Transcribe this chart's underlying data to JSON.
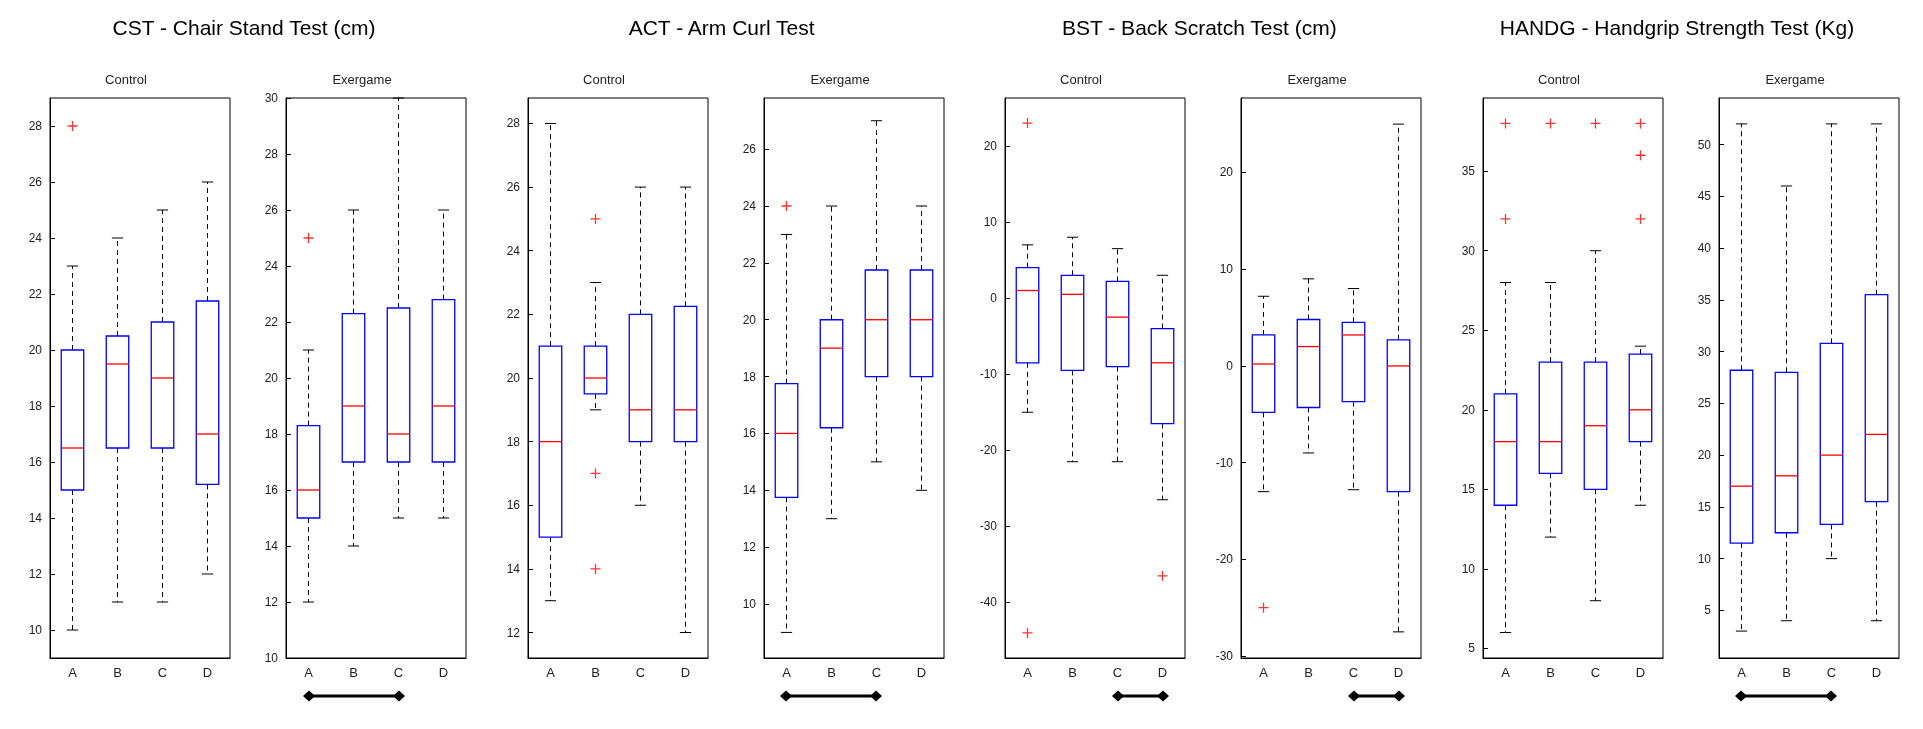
{
  "chart_data": [
    {
      "type": "box",
      "title": "CST - Chair Stand Test (cm)",
      "subtitle": "Control",
      "categories": [
        "A",
        "B",
        "C",
        "D"
      ],
      "ylim": [
        9,
        29
      ],
      "yticks": [
        10,
        12,
        14,
        16,
        18,
        20,
        22,
        24,
        26,
        28
      ],
      "grid": false,
      "marker": "cross",
      "line_style": "dashed",
      "series": [
        {
          "color": "#0000ff",
          "boxes": [
            {
              "low": 10,
              "q1": 15,
              "median": 16.5,
              "q3": 20,
              "high": 23,
              "outliers": [
                28
              ]
            },
            {
              "low": 11,
              "q1": 16.5,
              "median": 19.5,
              "q3": 20.5,
              "high": 24
            },
            {
              "low": 11,
              "q1": 16.5,
              "median": 19,
              "q3": 21,
              "high": 25
            },
            {
              "low": 12,
              "q1": 15.2,
              "median": 17,
              "q3": 21.75,
              "high": 26
            }
          ]
        }
      ]
    },
    {
      "type": "box",
      "subtitle": "Exergame",
      "categories": [
        "A",
        "B",
        "C",
        "D"
      ],
      "ylim": [
        10,
        30
      ],
      "yticks": [
        10,
        12,
        14,
        16,
        18,
        20,
        22,
        24,
        26,
        28,
        30
      ],
      "grid": false,
      "marker": "cross",
      "line_style": "dashed",
      "series": [
        {
          "color": "#0000ff",
          "boxes": [
            {
              "low": 12,
              "q1": 15,
              "median": 16,
              "q3": 18.3,
              "high": 21,
              "outliers": [
                25
              ]
            },
            {
              "low": 14,
              "q1": 17,
              "median": 19,
              "q3": 22.3,
              "high": 26
            },
            {
              "low": 15,
              "q1": 17,
              "median": 18,
              "q3": 22.5,
              "high": 30
            },
            {
              "low": 15,
              "q1": 17,
              "median": 19,
              "q3": 22.8,
              "high": 26
            }
          ]
        }
      ]
    },
    {
      "type": "box",
      "title": "ACT - Arm Curl Test",
      "subtitle": "Control",
      "categories": [
        "A",
        "B",
        "C",
        "D"
      ],
      "ylim": [
        11.2,
        28.8
      ],
      "yticks": [
        12,
        14,
        16,
        18,
        20,
        22,
        24,
        26,
        28
      ],
      "grid": false,
      "marker": "cross",
      "line_style": "dashed",
      "series": [
        {
          "color": "#0000ff",
          "boxes": [
            {
              "low": 13,
              "q1": 15,
              "median": 18,
              "q3": 21,
              "high": 28
            },
            {
              "low": 19,
              "q1": 19.5,
              "median": 20,
              "q3": 21,
              "high": 23,
              "outliers": [
                25,
                17,
                14
              ]
            },
            {
              "low": 16,
              "q1": 18,
              "median": 19,
              "q3": 22,
              "high": 26
            },
            {
              "low": 12,
              "q1": 18,
              "median": 19,
              "q3": 22.25,
              "high": 26
            }
          ]
        }
      ]
    },
    {
      "type": "box",
      "subtitle": "Exergame",
      "categories": [
        "A",
        "B",
        "C",
        "D"
      ],
      "ylim": [
        8.1,
        27.8
      ],
      "yticks": [
        10,
        12,
        14,
        16,
        18,
        20,
        22,
        24,
        26
      ],
      "grid": false,
      "marker": "cross",
      "line_style": "dashed",
      "series": [
        {
          "color": "#0000ff",
          "boxes": [
            {
              "low": 9,
              "q1": 13.75,
              "median": 16,
              "q3": 17.75,
              "high": 23,
              "outliers": [
                24
              ]
            },
            {
              "low": 13,
              "q1": 16.2,
              "median": 19,
              "q3": 20,
              "high": 24
            },
            {
              "low": 15,
              "q1": 18,
              "median": 20,
              "q3": 21.75,
              "high": 27
            },
            {
              "low": 14,
              "q1": 18,
              "median": 20,
              "q3": 21.75,
              "high": 24
            }
          ]
        }
      ]
    },
    {
      "type": "box",
      "title": "BST - Back Scratch Test (cm)",
      "subtitle": "Control",
      "categories": [
        "A",
        "B",
        "C",
        "D"
      ],
      "ylim": [
        -47.3,
        26.3
      ],
      "yticks": [
        -40,
        -30,
        -20,
        -10,
        0,
        10,
        20
      ],
      "grid": false,
      "marker": "cross",
      "line_style": "dashed",
      "series": [
        {
          "color": "#0000ff",
          "boxes": [
            {
              "low": -15,
              "q1": -8.5,
              "median": 1,
              "q3": 4,
              "high": 7,
              "outliers": [
                23,
                -44
              ]
            },
            {
              "low": -21.5,
              "q1": -9.5,
              "median": 0.5,
              "q3": 3,
              "high": 8
            },
            {
              "low": -21.5,
              "q1": -9,
              "median": -2.5,
              "q3": 2.2,
              "high": 6.5
            },
            {
              "low": -26.5,
              "q1": -16.5,
              "median": -8.5,
              "q3": -4,
              "high": 3,
              "outliers": [
                -36.5
              ]
            }
          ]
        }
      ]
    },
    {
      "type": "box",
      "subtitle": "Exergame",
      "categories": [
        "A",
        "B",
        "C",
        "D"
      ],
      "ylim": [
        -30.2,
        27.7
      ],
      "yticks": [
        -30,
        -20,
        -10,
        0,
        10,
        20
      ],
      "grid": false,
      "marker": "cross",
      "line_style": "dashed",
      "series": [
        {
          "color": "#0000ff",
          "boxes": [
            {
              "low": -13,
              "q1": -4.8,
              "median": 0.2,
              "q3": 3.2,
              "high": 7.2,
              "outliers": [
                -25
              ]
            },
            {
              "low": -9,
              "q1": -4.3,
              "median": 2,
              "q3": 4.8,
              "high": 9
            },
            {
              "low": -12.8,
              "q1": -3.7,
              "median": 3.2,
              "q3": 4.5,
              "high": 8
            },
            {
              "low": -27.5,
              "q1": -13,
              "median": 0,
              "q3": 2.7,
              "high": 25
            }
          ]
        }
      ]
    },
    {
      "type": "box",
      "title": "HANDG - Handgrip Strength Test (Kg)",
      "subtitle": "Control",
      "categories": [
        "A",
        "B",
        "C",
        "D"
      ],
      "ylim": [
        4.4,
        39.6
      ],
      "yticks": [
        5,
        10,
        15,
        20,
        25,
        30,
        35
      ],
      "grid": false,
      "marker": "cross",
      "line_style": "dashed",
      "series": [
        {
          "color": "#0000ff",
          "boxes": [
            {
              "low": 6,
              "q1": 14,
              "median": 18,
              "q3": 21,
              "high": 28,
              "outliers": [
                38,
                32
              ]
            },
            {
              "low": 12,
              "q1": 16,
              "median": 18,
              "q3": 23,
              "high": 28,
              "outliers": [
                38
              ]
            },
            {
              "low": 8,
              "q1": 15,
              "median": 19,
              "q3": 23,
              "high": 30,
              "outliers": [
                38
              ]
            },
            {
              "low": 14,
              "q1": 18,
              "median": 20,
              "q3": 23.5,
              "high": 24,
              "outliers": [
                38,
                36,
                32
              ]
            }
          ]
        }
      ]
    },
    {
      "type": "box",
      "subtitle": "Exergame",
      "categories": [
        "A",
        "B",
        "C",
        "D"
      ],
      "ylim": [
        0.4,
        54.5
      ],
      "yticks": [
        5,
        10,
        15,
        20,
        25,
        30,
        35,
        40,
        45,
        50
      ],
      "grid": false,
      "line_style": "dashed",
      "series": [
        {
          "color": "#0000ff",
          "boxes": [
            {
              "low": 3,
              "q1": 11.5,
              "median": 17,
              "q3": 28.2,
              "high": 52
            },
            {
              "low": 4,
              "q1": 12.5,
              "median": 18,
              "q3": 28,
              "high": 46
            },
            {
              "low": 10,
              "q1": 13.3,
              "median": 20,
              "q3": 30.8,
              "high": 52
            },
            {
              "low": 4,
              "q1": 15.5,
              "median": 22,
              "q3": 35.5,
              "high": 52
            }
          ]
        }
      ]
    }
  ]
}
